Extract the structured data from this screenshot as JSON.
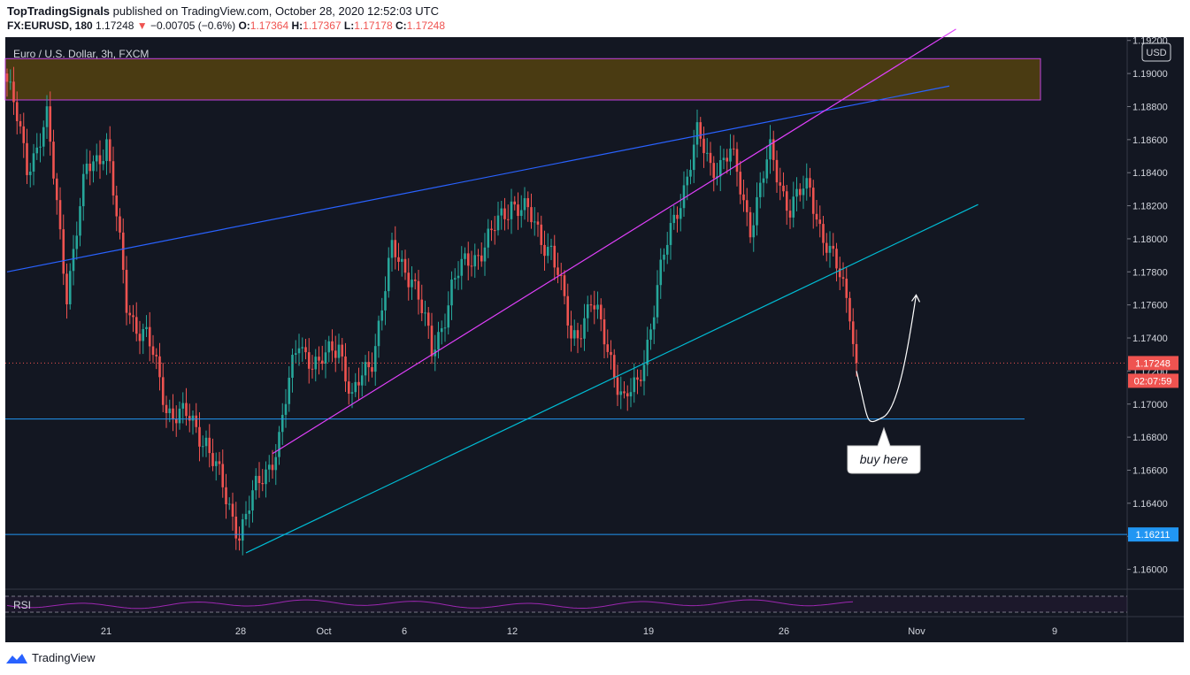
{
  "header": {
    "author": "TopTradingSignals",
    "published_text": "published on TradingView.com, October 28, 2020 12:52:03 UTC",
    "symbol": "FX:EURUSD, 180",
    "last": "1.17248",
    "change_arrow": "▼",
    "change": "−0.00705 (−0.6%)",
    "o_label": "O:",
    "o": "1.17364",
    "h_label": "H:",
    "h": "1.17367",
    "l_label": "L:",
    "l": "1.17178",
    "c_label": "C:",
    "c": "1.17248"
  },
  "chart_title": "Euro / U.S. Dollar, 3h, FXCM",
  "currency_label": "USD",
  "price_label": "1.17248",
  "countdown": "02:07:59",
  "support_label": "1.16211",
  "rsi_label": "RSI",
  "annotation": "buy here",
  "brand": "TradingView",
  "colors": {
    "background": "#131722",
    "up": "#26a69a",
    "down": "#ef5350",
    "channel_upper": "#2962ff",
    "channel_lower": "#00bcd4",
    "inner_line": "#e040fb",
    "zone_fill": "#4a3b12",
    "zone_border": "#c040e0",
    "support": "#2196f3",
    "rsi": "#9c27b0"
  },
  "chart_data": {
    "type": "candlestick",
    "interval": "3h",
    "ylim": [
      1.1588,
      1.1922
    ],
    "y_ticks": [
      "1.16000",
      "1.16200",
      "1.16400",
      "1.16600",
      "1.16800",
      "1.17000",
      "1.17200",
      "1.17400",
      "1.17600",
      "1.17800",
      "1.18000",
      "1.18200",
      "1.18400",
      "1.18600",
      "1.18800",
      "1.19000",
      "1.19200"
    ],
    "x_ticks": [
      "21",
      "28",
      "Oct",
      "6",
      "12",
      "19",
      "26",
      "Nov",
      "9"
    ],
    "close_path": [
      [
        0,
        1.1895
      ],
      [
        6,
        1.1845
      ],
      [
        12,
        1.187
      ],
      [
        18,
        1.177
      ],
      [
        24,
        1.184
      ],
      [
        30,
        1.186
      ],
      [
        36,
        1.176
      ],
      [
        42,
        1.174
      ],
      [
        48,
        1.17
      ],
      [
        54,
        1.169
      ],
      [
        60,
        1.168
      ],
      [
        66,
        1.164
      ],
      [
        70,
        1.1625
      ],
      [
        76,
        1.165
      ],
      [
        82,
        1.168
      ],
      [
        88,
        1.174
      ],
      [
        94,
        1.172
      ],
      [
        100,
        1.174
      ],
      [
        104,
        1.17
      ],
      [
        110,
        1.173
      ],
      [
        116,
        1.179
      ],
      [
        122,
        1.178
      ],
      [
        128,
        1.173
      ],
      [
        134,
        1.177
      ],
      [
        140,
        1.179
      ],
      [
        146,
        1.18
      ],
      [
        152,
        1.1825
      ],
      [
        158,
        1.181
      ],
      [
        164,
        1.1795
      ],
      [
        170,
        1.174
      ],
      [
        176,
        1.176
      ],
      [
        182,
        1.173
      ],
      [
        186,
        1.17
      ],
      [
        190,
        1.171
      ],
      [
        196,
        1.177
      ],
      [
        202,
        1.182
      ],
      [
        208,
        1.186
      ],
      [
        212,
        1.1845
      ],
      [
        218,
        1.185
      ],
      [
        224,
        1.181
      ],
      [
        230,
        1.185
      ],
      [
        236,
        1.182
      ],
      [
        242,
        1.183
      ],
      [
        248,
        1.179
      ],
      [
        254,
        1.176
      ],
      [
        256,
        1.1725
      ]
    ],
    "overlays": {
      "supply_zone": [
        1.1884,
        1.1909
      ],
      "horizontal_levels": [
        1.1691,
        1.16211
      ],
      "current_price": 1.17248,
      "upper_trendline": [
        [
          0,
          1.178
        ],
        [
          240,
          1.1875
        ]
      ],
      "lower_trendline": [
        [
          72,
          1.161
        ],
        [
          250,
          1.178
        ]
      ],
      "inner_trendline": [
        [
          80,
          1.167
        ],
        [
          242,
          1.1872
        ]
      ],
      "projected_path": [
        [
          256,
          1.172
        ],
        [
          264,
          1.1692
        ],
        [
          274,
          1.1766
        ]
      ]
    }
  }
}
